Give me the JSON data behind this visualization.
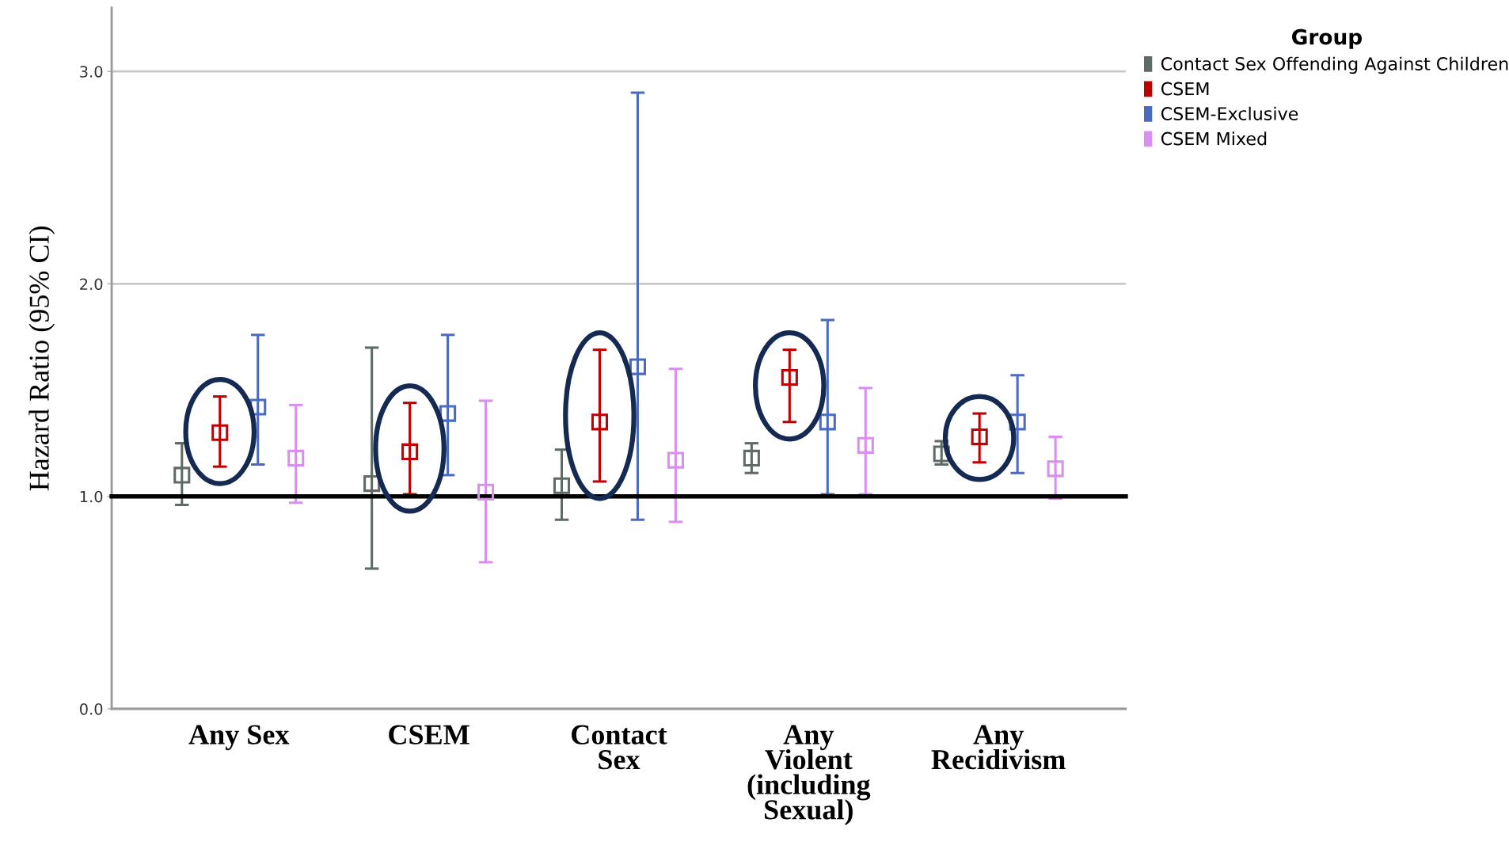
{
  "chart_data": {
    "type": "scatter",
    "ylabel": "Hazard Ratio (95% CI)",
    "legend_title": "Group",
    "legend": "top right",
    "grid": "y",
    "marker": "square",
    "categories": [
      "Any Sex",
      "CSEM",
      "Contact\nSex",
      "Any\nViolent\n(including\nSexual)",
      "Any\nRecidivism"
    ],
    "ylim": [
      0,
      3.3
    ],
    "yticks": [
      {
        "value": 0,
        "label": "0.0"
      },
      {
        "value": 1,
        "label": "1.0"
      },
      {
        "value": 2,
        "label": "2.0"
      },
      {
        "value": 3,
        "label": "3.0"
      }
    ],
    "series": [
      {
        "name": "Contact Sex Offending Against Children",
        "color": "#5f6b64",
        "values": [
          1.1,
          1.06,
          1.05,
          1.18,
          1.2
        ],
        "errors": [
          [
            0.96,
            1.25
          ],
          [
            0.66,
            1.7
          ],
          [
            0.89,
            1.22
          ],
          [
            1.11,
            1.25
          ],
          [
            1.15,
            1.26
          ]
        ]
      },
      {
        "name": "CSEM",
        "color": "#c00000",
        "values": [
          1.3,
          1.21,
          1.35,
          1.56,
          1.28
        ],
        "errors": [
          [
            1.14,
            1.47
          ],
          [
            1.01,
            1.44
          ],
          [
            1.07,
            1.69
          ],
          [
            1.35,
            1.69
          ],
          [
            1.16,
            1.39
          ]
        ]
      },
      {
        "name": "CSEM-Exclusive",
        "color": "#4a6bbf",
        "values": [
          1.42,
          1.39,
          1.61,
          1.35,
          1.35
        ],
        "errors": [
          [
            1.15,
            1.76
          ],
          [
            1.1,
            1.76
          ],
          [
            0.89,
            2.9
          ],
          [
            1.01,
            1.83
          ],
          [
            1.11,
            1.57
          ]
        ]
      },
      {
        "name": "CSEM Mixed",
        "color": "#d98ef0",
        "values": [
          1.18,
          1.02,
          1.17,
          1.24,
          1.13
        ],
        "errors": [
          [
            0.97,
            1.43
          ],
          [
            0.69,
            1.45
          ],
          [
            0.88,
            1.6
          ],
          [
            1.01,
            1.51
          ],
          [
            0.99,
            1.28
          ]
        ]
      }
    ],
    "ref_lines": [
      {
        "axis": "y",
        "value": 1,
        "color": "#000000",
        "line_style": "solid"
      }
    ]
  }
}
